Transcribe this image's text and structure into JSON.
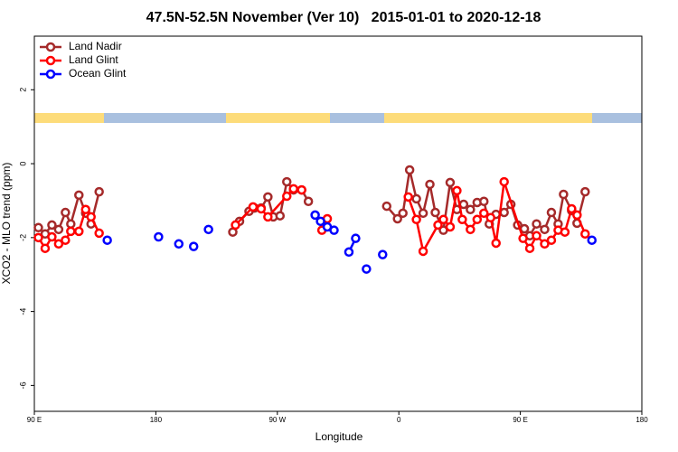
{
  "chart_data": {
    "type": "line",
    "title": "47.5N-52.5N November (Ver 10)   2015-01-01 to 2020-12-18",
    "x_label": "Longitude",
    "y_label": "XCO2 - MLO trend (ppm)",
    "xlim": [
      90,
      540
    ],
    "xticks": [
      {
        "value": 90,
        "label": "90 E"
      },
      {
        "value": 180,
        "label": "180"
      },
      {
        "value": 270,
        "label": "90 W"
      },
      {
        "value": 360,
        "label": "0"
      },
      {
        "value": 450,
        "label": "90 E"
      },
      {
        "value": 540,
        "label": "180"
      }
    ],
    "ylim": [
      -6.7,
      3.45
    ],
    "yticks": [
      -6,
      -4,
      -2,
      0,
      2
    ],
    "legend": "top-left",
    "series": [
      {
        "name": "Land Nadir",
        "color": "#a52a2a",
        "x": [
          93,
          98,
          103,
          108,
          113,
          117,
          123,
          128,
          132,
          138,
          null,
          237,
          242,
          249,
          253,
          258,
          263,
          267,
          272,
          277,
          282,
          288,
          293,
          null,
          351,
          359,
          363,
          368,
          373,
          378,
          383,
          387,
          393,
          398,
          403,
          408,
          413,
          418,
          423,
          427,
          432,
          438,
          443,
          448,
          453,
          457,
          462,
          468,
          473,
          478,
          482,
          488,
          492,
          498
        ],
        "values": [
          -1.73,
          -1.9,
          -1.66,
          -1.78,
          -1.32,
          -1.63,
          -0.85,
          -1.34,
          -1.63,
          -0.76,
          null,
          -1.85,
          -1.56,
          -1.29,
          -1.2,
          -1.2,
          -0.9,
          -1.44,
          -1.41,
          -0.49,
          -0.71,
          -0.71,
          -1.02,
          null,
          -1.15,
          -1.49,
          -1.34,
          -0.17,
          -0.95,
          -1.34,
          -0.56,
          -1.32,
          -1.8,
          -0.51,
          -1.24,
          -1.1,
          -1.24,
          -1.05,
          -1.02,
          -1.63,
          -1.37,
          -1.32,
          -1.1,
          -1.66,
          -1.76,
          -1.95,
          -1.63,
          -1.78,
          -1.32,
          -1.63,
          -0.83,
          -1.27,
          -1.61,
          -0.76
        ]
      },
      {
        "name": "Land Glint",
        "color": "#ff0000",
        "x": [
          93,
          98,
          103,
          108,
          113,
          117,
          123,
          128,
          132,
          138,
          null,
          239,
          252,
          258,
          263,
          277,
          282,
          288,
          null,
          303,
          307,
          null,
          367,
          373,
          378,
          389,
          393,
          398,
          403,
          407,
          413,
          418,
          423,
          428,
          432,
          438,
          452,
          457,
          462,
          468,
          473,
          478,
          483,
          488,
          492,
          498
        ],
        "values": [
          -2.0,
          -2.29,
          -1.98,
          -2.17,
          -2.07,
          -1.83,
          -1.83,
          -1.24,
          -1.44,
          -1.88,
          null,
          -1.66,
          -1.17,
          -1.22,
          -1.44,
          -0.88,
          -0.68,
          -0.71,
          null,
          -1.8,
          -1.49,
          null,
          -0.9,
          -1.51,
          -2.37,
          -1.66,
          -1.51,
          -1.71,
          -0.73,
          -1.51,
          -1.78,
          -1.51,
          -1.34,
          -1.46,
          -2.15,
          -0.49,
          -2.02,
          -2.29,
          -1.95,
          -2.17,
          -2.07,
          -1.8,
          -1.85,
          -1.22,
          -1.39,
          -1.9
        ]
      },
      {
        "name": "Ocean Glint",
        "color": "#0000ff",
        "x": [
          144,
          null,
          182,
          null,
          197,
          null,
          208,
          null,
          219,
          null,
          298,
          302,
          307,
          312,
          null,
          323,
          328,
          null,
          336,
          null,
          348,
          null,
          503
        ],
        "values": [
          -2.07,
          null,
          -1.98,
          null,
          -2.17,
          null,
          -2.24,
          null,
          -1.78,
          null,
          -1.39,
          -1.56,
          -1.71,
          -1.8,
          null,
          -2.39,
          -2.02,
          null,
          -2.85,
          null,
          -2.46,
          null,
          -2.07
        ]
      }
    ]
  }
}
